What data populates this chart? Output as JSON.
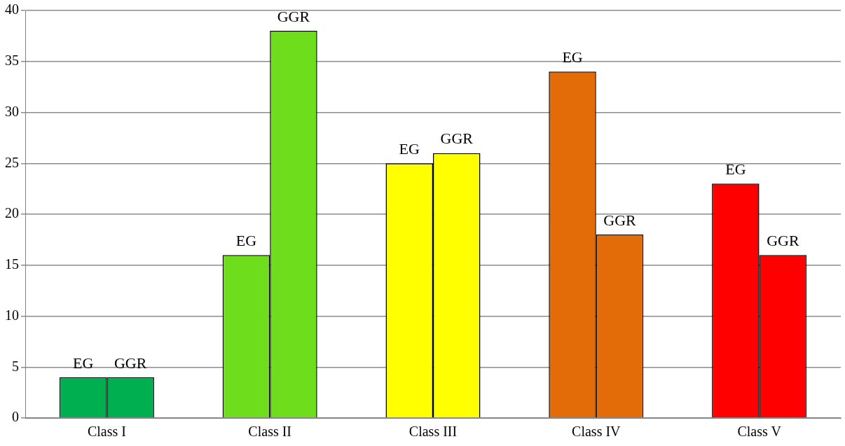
{
  "chart_data": {
    "type": "bar",
    "categories": [
      "Class I",
      "Class II",
      "Class III",
      "Class IV",
      "Class V"
    ],
    "series": [
      {
        "name": "EG",
        "colors": [
          "#00b050",
          "#6ede1c",
          "#ffff00",
          "#e36c09",
          "#ff0000"
        ],
        "values": [
          4,
          16,
          25,
          34,
          23
        ]
      },
      {
        "name": "GGR",
        "colors": [
          "#00b050",
          "#6ede1c",
          "#ffff00",
          "#e36c09",
          "#ff0000"
        ],
        "values": [
          4,
          38,
          26,
          18,
          16
        ]
      }
    ],
    "ylim": [
      0,
      40
    ],
    "yticks": [
      0,
      5,
      10,
      15,
      20,
      25,
      30,
      35,
      40
    ],
    "grid": "y",
    "legend": false
  }
}
